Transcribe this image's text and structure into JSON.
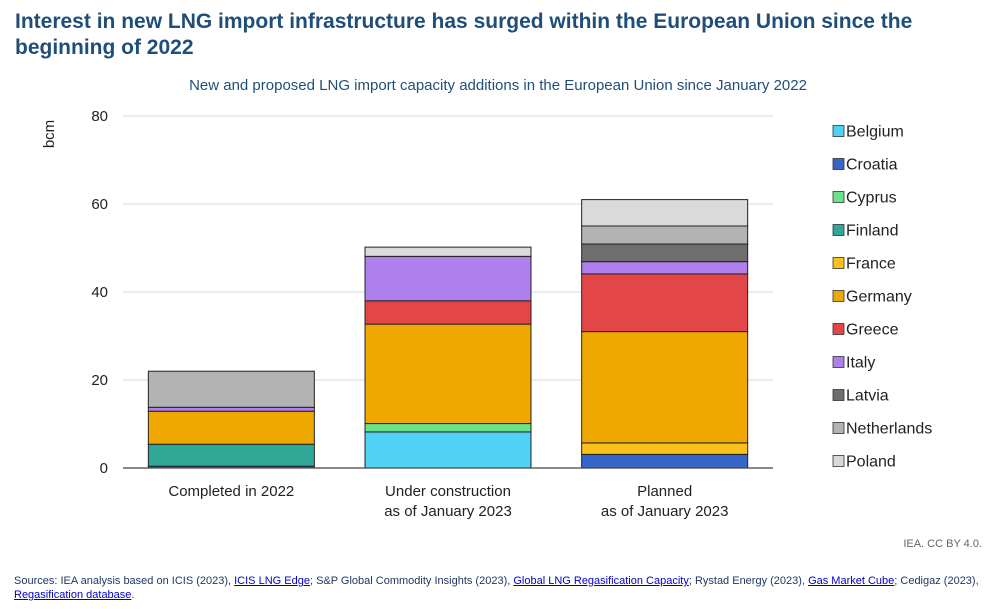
{
  "header": {
    "title": "Interest in new LNG import infrastructure has surged within the European Union since the beginning of 2022",
    "subtitle": "New and proposed LNG import capacity additions in the European Union since January 2022"
  },
  "chart_data": {
    "type": "bar",
    "stacked": true,
    "title": "New and proposed LNG import capacity additions in the European Union since January 2022",
    "ylabel": "bcm",
    "ylim": [
      0,
      80
    ],
    "yticks": [
      0,
      20,
      40,
      60,
      80
    ],
    "grid": true,
    "legend_position": "right",
    "categories": [
      [
        "Completed in 2022"
      ],
      [
        "Under construction",
        "as of January 2023"
      ],
      [
        "Planned",
        "as of January 2023"
      ]
    ],
    "series": [
      {
        "name": "Belgium",
        "color": "#4fd2f6",
        "values": [
          0,
          8.2,
          0
        ]
      },
      {
        "name": "Croatia",
        "color": "#3866c8",
        "values": [
          0.4,
          0,
          3.1
        ]
      },
      {
        "name": "Cyprus",
        "color": "#6ee28b",
        "values": [
          0,
          1.9,
          0
        ]
      },
      {
        "name": "Finland",
        "color": "#30a898",
        "values": [
          5,
          0,
          0
        ]
      },
      {
        "name": "France",
        "color": "#f9c11a",
        "values": [
          0,
          0,
          2.6
        ]
      },
      {
        "name": "Germany",
        "color": "#efa802",
        "values": [
          7.5,
          22.6,
          25.3
        ]
      },
      {
        "name": "Greece",
        "color": "#e24646",
        "values": [
          0,
          5.3,
          13.1
        ]
      },
      {
        "name": "Italy",
        "color": "#af7fec",
        "values": [
          0.9,
          10.1,
          2.8
        ]
      },
      {
        "name": "Latvia",
        "color": "#6e6e6e",
        "values": [
          0,
          0,
          4
        ]
      },
      {
        "name": "Netherlands",
        "color": "#b3b3b3",
        "values": [
          8.2,
          0,
          4.1
        ]
      },
      {
        "name": "Poland",
        "color": "#dadada",
        "values": [
          0,
          2.1,
          6
        ]
      }
    ]
  },
  "footer": {
    "credit": "IEA. CC BY 4.0.",
    "sources": [
      {
        "text": "Sources: IEA analysis based on ICIS (2023), ",
        "link": false
      },
      {
        "text": "ICIS LNG Edge",
        "link": true
      },
      {
        "text": "; S&P Global Commodity Insights (2023), ",
        "link": false
      },
      {
        "text": "Global LNG Regasification Capacity",
        "link": true
      },
      {
        "text": "; Rystad Energy (2023), ",
        "link": false
      },
      {
        "text": "Gas Market Cube",
        "link": true
      },
      {
        "text": "; Cedigaz (2023), ",
        "link": false
      },
      {
        "text": "Regasification database",
        "link": true
      },
      {
        "text": ".",
        "link": false
      }
    ]
  }
}
